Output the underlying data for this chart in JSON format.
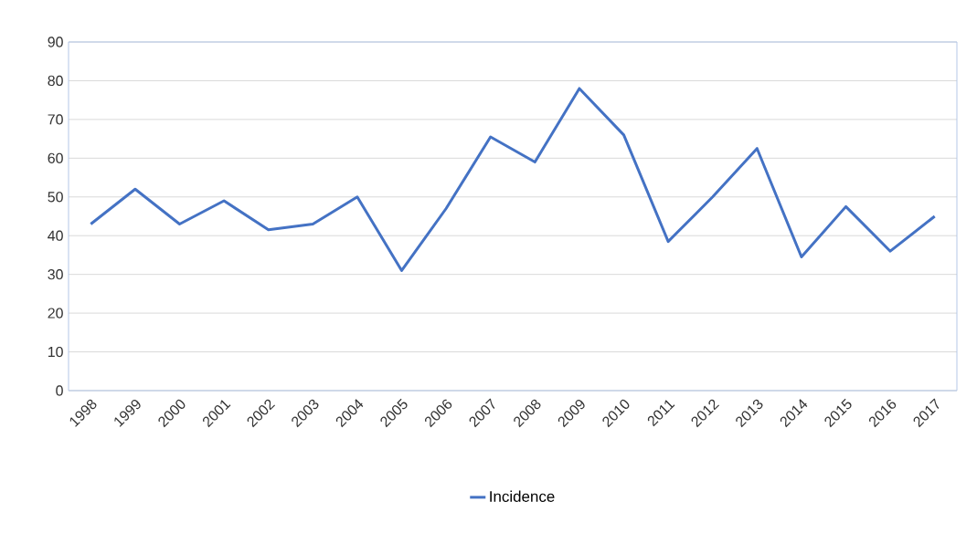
{
  "chart_data": {
    "type": "line",
    "categories": [
      "1998",
      "1999",
      "2000",
      "2001",
      "2002",
      "2003",
      "2004",
      "2005",
      "2006",
      "2007",
      "2008",
      "2009",
      "2010",
      "2011",
      "2012",
      "2013",
      "2014",
      "2015",
      "2016",
      "2017"
    ],
    "series": [
      {
        "name": "Incidence",
        "color": "#4472c4",
        "values": [
          43,
          52,
          43,
          49,
          41.5,
          43,
          50,
          31,
          47,
          65.5,
          59,
          78,
          66,
          38.5,
          50,
          62.5,
          34.5,
          47.5,
          36,
          45
        ]
      }
    ],
    "ylim": [
      0,
      90
    ],
    "yticks": [
      0,
      10,
      20,
      30,
      40,
      50,
      60,
      70,
      80,
      90
    ],
    "grid": "y",
    "legend": "bottom",
    "marker": "none",
    "line_style": "solid"
  }
}
